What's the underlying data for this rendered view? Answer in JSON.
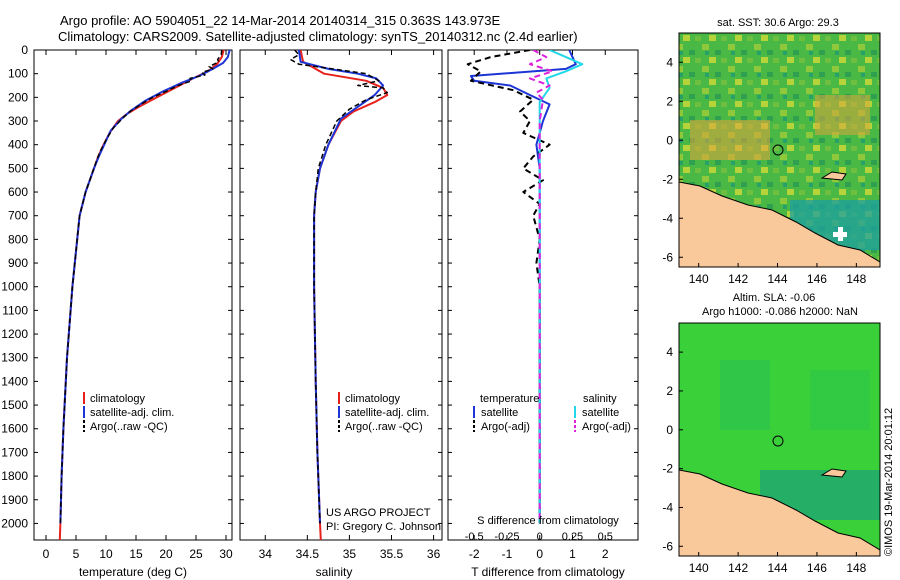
{
  "header": {
    "title1": "Argo profile: AO 5904051_22 14-Mar-2014 20140314_315 0.363S 143.973E",
    "title2": "Climatology: CARS2009. Satellite-adjusted climatology: synTS_20140312.nc (2.4d earlier)"
  },
  "colors": {
    "climatology": "#e8201c",
    "satellite": "#1c35d6",
    "argo": "#000000",
    "salinity_sat": "#22d8e8",
    "salinity_argo": "#dd22dd",
    "land": "#f9c89b",
    "sst_bg": "#3cb44a",
    "sla_bg": "#3ad03a"
  },
  "depth_axis": {
    "ticks": [
      0,
      100,
      200,
      300,
      400,
      500,
      600,
      700,
      800,
      900,
      1000,
      1100,
      1200,
      1300,
      1400,
      1500,
      1600,
      1700,
      1800,
      1900,
      2000
    ],
    "max": 2070
  },
  "chart_data": [
    {
      "type": "line",
      "name": "temperature-panel",
      "xlabel": "temperature (deg C)",
      "xlim": [
        -2,
        31
      ],
      "xticks": [
        0,
        5,
        10,
        15,
        20,
        25,
        30
      ],
      "legend": [
        "climatology",
        "satellite-adj. clim.",
        "Argo(..raw -QC)"
      ],
      "series": [
        {
          "name": "climatology",
          "color": "#e8201c",
          "width": 2,
          "points": [
            [
              29.6,
              0
            ],
            [
              29.3,
              30
            ],
            [
              28.5,
              60
            ],
            [
              27,
              90
            ],
            [
              24.5,
              120
            ],
            [
              21.5,
              160
            ],
            [
              18.5,
              200
            ],
            [
              15.5,
              240
            ],
            [
              13.5,
              270
            ],
            [
              12,
              300
            ],
            [
              10.6,
              350
            ],
            [
              9.6,
              400
            ],
            [
              8.7,
              450
            ],
            [
              8,
              500
            ],
            [
              7.3,
              550
            ],
            [
              6.6,
              600
            ],
            [
              6.1,
              650
            ],
            [
              5.6,
              700
            ],
            [
              5.2,
              800
            ],
            [
              4.8,
              900
            ],
            [
              4.4,
              1000
            ],
            [
              4.1,
              1100
            ],
            [
              3.8,
              1200
            ],
            [
              3.5,
              1300
            ],
            [
              3.3,
              1400
            ],
            [
              3.1,
              1500
            ],
            [
              2.9,
              1600
            ],
            [
              2.75,
              1700
            ],
            [
              2.6,
              1800
            ],
            [
              2.5,
              1900
            ],
            [
              2.4,
              2000
            ],
            [
              2.3,
              2070
            ]
          ]
        },
        {
          "name": "satellite-adj. clim.",
          "color": "#1c35d6",
          "width": 2,
          "points": [
            [
              30.6,
              0
            ],
            [
              30.3,
              30
            ],
            [
              29.5,
              55
            ],
            [
              27.8,
              80
            ],
            [
              25.5,
              110
            ],
            [
              22.5,
              140
            ],
            [
              19.5,
              175
            ],
            [
              16.5,
              215
            ],
            [
              14.2,
              255
            ],
            [
              12.6,
              290
            ],
            [
              10.8,
              340
            ],
            [
              9.7,
              400
            ],
            [
              8.8,
              450
            ],
            [
              8,
              500
            ],
            [
              7.3,
              550
            ],
            [
              6.6,
              600
            ],
            [
              6.1,
              650
            ],
            [
              5.6,
              700
            ],
            [
              5.2,
              800
            ],
            [
              4.8,
              900
            ],
            [
              4.4,
              1000
            ],
            [
              4.1,
              1100
            ],
            [
              3.8,
              1200
            ],
            [
              3.5,
              1300
            ],
            [
              3.3,
              1400
            ],
            [
              3.1,
              1500
            ],
            [
              2.9,
              1600
            ],
            [
              2.75,
              1700
            ],
            [
              2.6,
              1800
            ],
            [
              2.5,
              1900
            ],
            [
              2.4,
              2000
            ]
          ]
        },
        {
          "name": "Argo(..raw -QC)",
          "color": "#000000",
          "width": 1.5,
          "dash": "5,3",
          "points": [
            [
              29.3,
              0
            ],
            [
              29.2,
              20
            ],
            [
              28.6,
              40
            ],
            [
              28.8,
              50
            ],
            [
              27.2,
              70
            ],
            [
              27.8,
              80
            ],
            [
              26,
              95
            ],
            [
              26.5,
              105
            ],
            [
              24,
              120
            ],
            [
              24.3,
              130
            ],
            [
              22,
              150
            ],
            [
              20,
              175
            ],
            [
              17.8,
              200
            ],
            [
              15.8,
              230
            ],
            [
              14,
              260
            ],
            [
              12.7,
              290
            ],
            [
              11.2,
              330
            ],
            [
              10,
              380
            ],
            [
              9,
              430
            ],
            [
              8.1,
              490
            ],
            [
              7.3,
              550
            ],
            [
              6.6,
              600
            ],
            [
              6,
              660
            ],
            [
              5.6,
              700
            ],
            [
              5.2,
              800
            ],
            [
              4.8,
              900
            ],
            [
              4.4,
              1000
            ],
            [
              4.1,
              1100
            ],
            [
              3.8,
              1200
            ],
            [
              3.5,
              1300
            ],
            [
              3.3,
              1400
            ],
            [
              3.1,
              1500
            ],
            [
              2.9,
              1600
            ],
            [
              2.75,
              1700
            ],
            [
              2.6,
              1800
            ],
            [
              2.5,
              1900
            ],
            [
              2.4,
              2000
            ]
          ]
        }
      ]
    },
    {
      "type": "line",
      "name": "salinity-panel",
      "xlabel": "salinity",
      "xlim": [
        33.7,
        36.1
      ],
      "xticks": [
        34,
        34.5,
        35,
        35.5,
        36
      ],
      "legend": [
        "climatology",
        "satellite-adj. clim.",
        "Argo(..raw -QC)"
      ],
      "footer": [
        "US ARGO PROJECT",
        "PI: Gregory C. Johnson"
      ],
      "series": [
        {
          "name": "climatology",
          "color": "#e8201c",
          "width": 2,
          "points": [
            [
              34.42,
              0
            ],
            [
              34.45,
              50
            ],
            [
              34.7,
              100
            ],
            [
              35.2,
              130
            ],
            [
              35.4,
              160
            ],
            [
              35.45,
              190
            ],
            [
              35.3,
              220
            ],
            [
              35.05,
              260
            ],
            [
              34.9,
              300
            ],
            [
              34.75,
              400
            ],
            [
              34.65,
              500
            ],
            [
              34.6,
              600
            ],
            [
              34.58,
              700
            ],
            [
              34.58,
              1000
            ],
            [
              34.6,
              1400
            ],
            [
              34.62,
              1700
            ],
            [
              34.65,
              2000
            ],
            [
              34.66,
              2070
            ]
          ]
        },
        {
          "name": "satellite-adj. clim.",
          "color": "#1c35d6",
          "width": 2,
          "points": [
            [
              34.4,
              0
            ],
            [
              34.42,
              50
            ],
            [
              34.75,
              80
            ],
            [
              35.1,
              100
            ],
            [
              35.32,
              120
            ],
            [
              35.4,
              150
            ],
            [
              35.3,
              190
            ],
            [
              35.1,
              240
            ],
            [
              34.9,
              290
            ],
            [
              34.75,
              400
            ],
            [
              34.65,
              500
            ],
            [
              34.6,
              600
            ],
            [
              34.58,
              700
            ],
            [
              34.58,
              1000
            ],
            [
              34.6,
              1400
            ],
            [
              34.62,
              1700
            ],
            [
              34.65,
              2000
            ]
          ]
        },
        {
          "name": "Argo(..raw -QC)",
          "color": "#000000",
          "width": 1.5,
          "dash": "5,3",
          "points": [
            [
              34.35,
              0
            ],
            [
              34.4,
              20
            ],
            [
              34.3,
              40
            ],
            [
              34.4,
              60
            ],
            [
              34.8,
              80
            ],
            [
              35.2,
              100
            ],
            [
              35.35,
              130
            ],
            [
              35.1,
              150
            ],
            [
              35.4,
              160
            ],
            [
              35.45,
              180
            ],
            [
              35.2,
              210
            ],
            [
              35.0,
              250
            ],
            [
              34.85,
              300
            ],
            [
              34.72,
              400
            ],
            [
              34.63,
              500
            ],
            [
              34.6,
              600
            ],
            [
              34.58,
              700
            ],
            [
              34.58,
              1000
            ],
            [
              34.6,
              1400
            ],
            [
              34.62,
              1700
            ],
            [
              34.65,
              2000
            ]
          ]
        }
      ]
    },
    {
      "type": "line",
      "name": "difference-panel",
      "xlabel": "T difference from climatology",
      "xlabel_top": "S difference from climatology",
      "xlim": [
        -2.8,
        3.0
      ],
      "xticks": [
        -2,
        -1,
        0,
        1,
        2
      ],
      "s_ticks": [
        "-0.5",
        "-0.25",
        "0",
        "0.25",
        "0.5"
      ],
      "s_tick_positions": [
        -2,
        -1,
        0,
        1,
        2
      ],
      "legend_left_title": "temperature",
      "legend_right_title": "salinity",
      "legend": [
        "satellite",
        "Argo(-adj)",
        "satellite",
        "Argo(-adj)"
      ],
      "series": [
        {
          "name": "T satellite",
          "color": "#1c35d6",
          "width": 2,
          "points": [
            [
              0.9,
              0
            ],
            [
              1.0,
              30
            ],
            [
              1.1,
              60
            ],
            [
              0.8,
              80
            ],
            [
              -2.1,
              110
            ],
            [
              -2.0,
              130
            ],
            [
              -0.9,
              150
            ],
            [
              -0.3,
              190
            ],
            [
              0.3,
              230
            ],
            [
              0.1,
              300
            ],
            [
              -0.1,
              400
            ],
            [
              0,
              500
            ],
            [
              0,
              800
            ],
            [
              0,
              2000
            ]
          ]
        },
        {
          "name": "T Argo(-adj)",
          "color": "#000000",
          "width": 2,
          "dash": "6,4",
          "points": [
            [
              -0.3,
              0
            ],
            [
              -1.5,
              30
            ],
            [
              -2.2,
              60
            ],
            [
              -1.8,
              90
            ],
            [
              -2.1,
              130
            ],
            [
              -0.8,
              170
            ],
            [
              -0.2,
              210
            ],
            [
              -0.6,
              260
            ],
            [
              -0.3,
              300
            ],
            [
              -0.5,
              350
            ],
            [
              0.3,
              400
            ],
            [
              -0.2,
              450
            ],
            [
              -0.5,
              500
            ],
            [
              0.1,
              550
            ],
            [
              -0.5,
              600
            ],
            [
              0,
              650
            ],
            [
              -0.2,
              700
            ],
            [
              0,
              800
            ],
            [
              -0.1,
              900
            ],
            [
              0,
              1000
            ],
            [
              0,
              2000
            ]
          ]
        },
        {
          "name": "S satellite",
          "color": "#22d8e8",
          "width": 2,
          "points": [
            [
              0.3,
              0
            ],
            [
              0.8,
              30
            ],
            [
              1.3,
              60
            ],
            [
              0.8,
              90
            ],
            [
              0.2,
              120
            ],
            [
              0.3,
              160
            ],
            [
              0,
              220
            ],
            [
              0,
              400
            ],
            [
              0,
              2000
            ]
          ]
        },
        {
          "name": "S Argo(-adj)",
          "color": "#dd22dd",
          "width": 2,
          "dash": "6,4",
          "points": [
            [
              -0.2,
              0
            ],
            [
              0.2,
              30
            ],
            [
              -0.3,
              60
            ],
            [
              0.4,
              90
            ],
            [
              -0.3,
              120
            ],
            [
              0.3,
              150
            ],
            [
              -0.1,
              180
            ],
            [
              0.1,
              210
            ],
            [
              0,
              300
            ],
            [
              0,
              2000
            ]
          ]
        }
      ]
    }
  ],
  "map_top": {
    "title": "sat. SST: 30.6 Argo: 29.3",
    "xticks": [
      "140",
      "142",
      "144",
      "146",
      "148"
    ],
    "yticks": [
      "4",
      "2",
      "0",
      "-2",
      "-4",
      "-6"
    ]
  },
  "map_bottom": {
    "title1": "Altim. SLA: -0.06",
    "title2": "Argo h1000: -0.086 h2000: NaN",
    "xticks": [
      "140",
      "142",
      "144",
      "146",
      "148"
    ],
    "yticks": [
      "4",
      "2",
      "0",
      "-2",
      "-4",
      "-6"
    ]
  },
  "stamp": "©IMOS 19-Mar-2014 20:01:12"
}
